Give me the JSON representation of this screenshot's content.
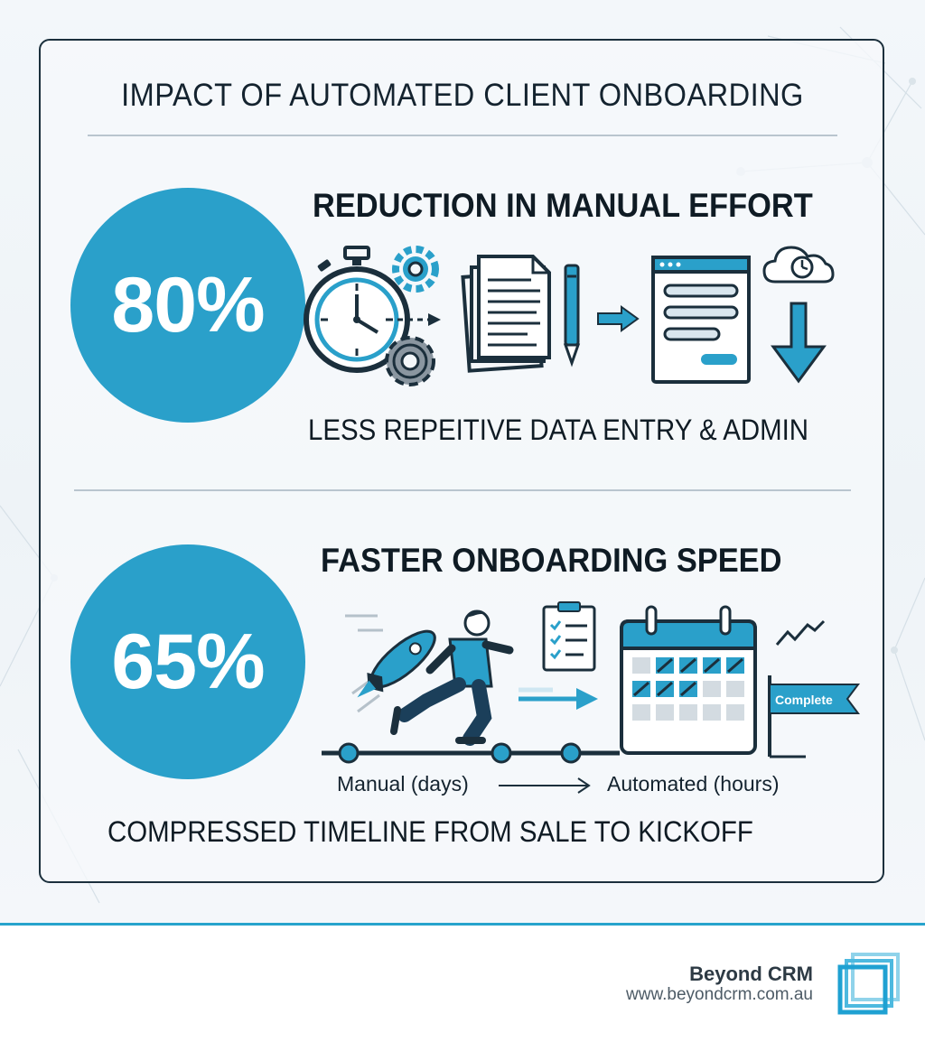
{
  "title": "IMPACT OF AUTOMATED CLIENT ONBOARDING",
  "section1": {
    "stat": "80%",
    "heading": "REDUCTION IN MANUAL EFFORT",
    "subtitle": "LESS REPEITIVE DATA ENTRY & ADMIN",
    "icons": [
      "stopwatch-icon",
      "gear-icon",
      "documents-icon",
      "pen-icon",
      "arrow-right-icon",
      "web-form-icon",
      "cloud-clock-icon",
      "arrow-down-icon"
    ]
  },
  "section2": {
    "stat": "65%",
    "heading": "FASTER ONBOARDING SPEED",
    "timeline_from": "Manual (days)",
    "timeline_to": "Automated (hours)",
    "flag_label": "Complete",
    "subtitle": "COMPRESSED TIMELINE FROM SALE TO KICKOFF",
    "icons": [
      "rocket-runner-icon",
      "checklist-icon",
      "calendar-icon",
      "flag-icon",
      "trend-icon"
    ]
  },
  "footer": {
    "brand": "Beyond CRM",
    "url": "www.beyondcrm.com.au",
    "logo_icon": "stacked-squares-logo-icon"
  },
  "colors": {
    "accent": "#2aa0ca",
    "dark": "#1b2f3c",
    "background": "#eef3f7"
  }
}
